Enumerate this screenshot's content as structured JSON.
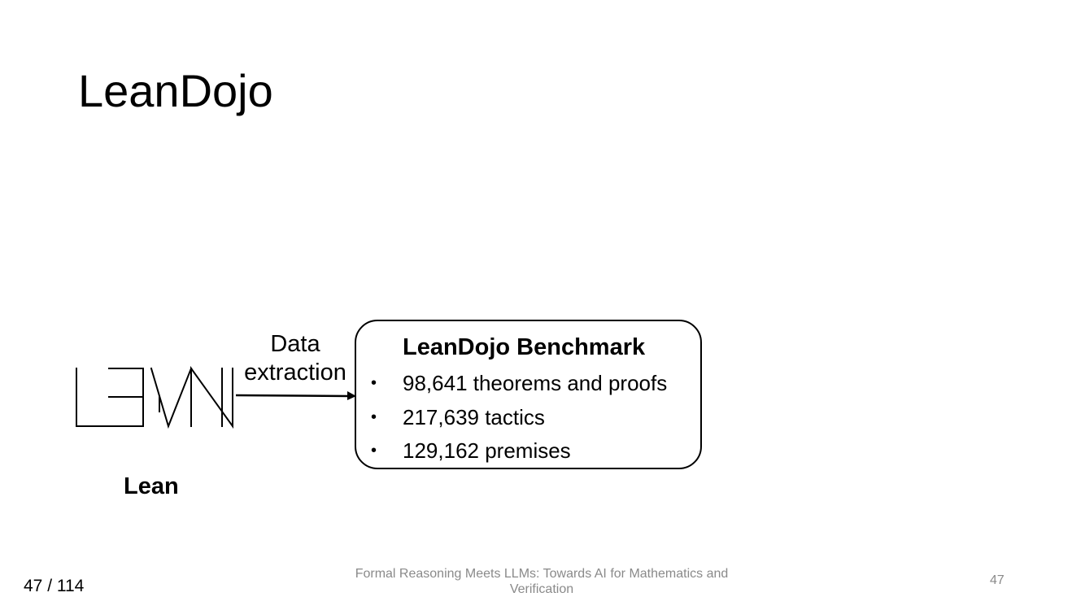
{
  "slide": {
    "title": "LeanDojo",
    "lean_caption": "Lean",
    "arrow_label_line1": "Data",
    "arrow_label_line2": "extraction",
    "benchmark": {
      "title": "LeanDojo Benchmark",
      "items": [
        "98,641 theorems and proofs",
        "217,639 tactics",
        "129,162 premises"
      ]
    }
  },
  "footer": {
    "page_counter": "47 / 114",
    "presentation_title": "Formal Reasoning Meets LLMs: Towards AI for Mathematics and Verification",
    "slide_number": "47"
  }
}
